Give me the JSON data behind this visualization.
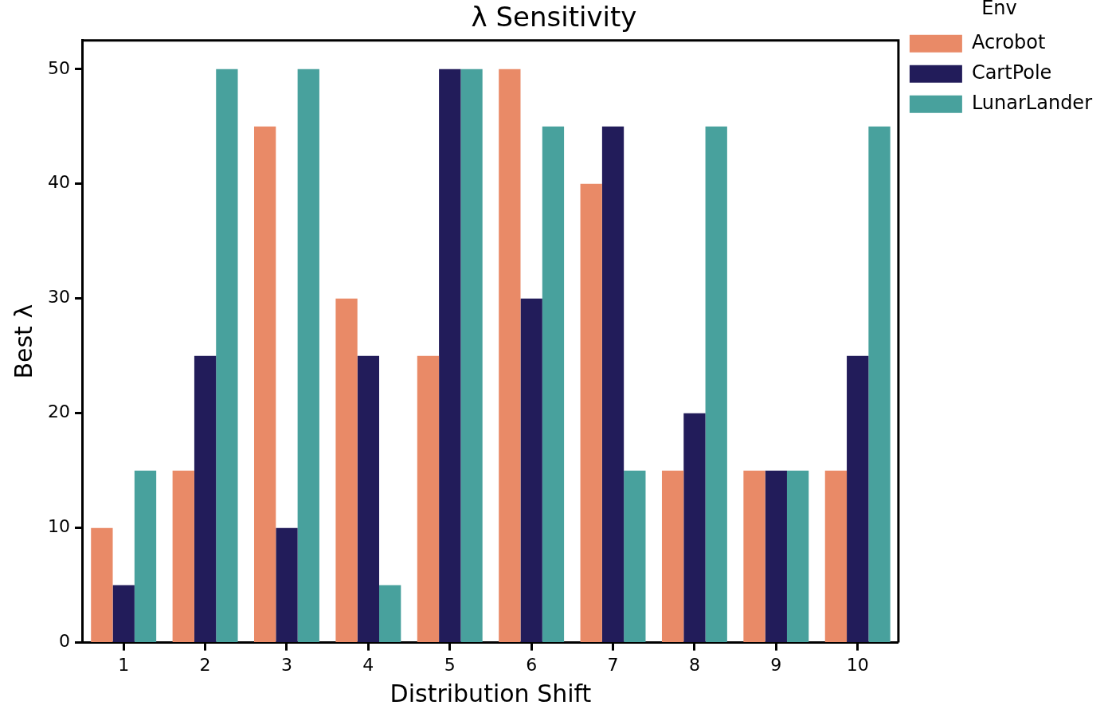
{
  "chart_data": {
    "type": "bar",
    "title": "λ Sensitivity",
    "xlabel": "Distribution Shift",
    "ylabel": "Best λ",
    "legend_title": "Env",
    "categories": [
      "1",
      "2",
      "3",
      "4",
      "5",
      "6",
      "7",
      "8",
      "9",
      "10"
    ],
    "series": [
      {
        "name": "Acrobot",
        "color": "#e98a67",
        "values": [
          10,
          15,
          45,
          30,
          25,
          50,
          40,
          15,
          15,
          15
        ]
      },
      {
        "name": "CartPole",
        "color": "#221c5a",
        "values": [
          5,
          25,
          10,
          25,
          50,
          30,
          45,
          20,
          15,
          25
        ]
      },
      {
        "name": "LunarLander",
        "color": "#48a19d",
        "values": [
          15,
          50,
          50,
          5,
          50,
          45,
          15,
          45,
          15,
          45
        ]
      }
    ],
    "ylim": [
      0,
      52.5
    ],
    "yticks": [
      0,
      10,
      20,
      30,
      40,
      50
    ],
    "grid": false,
    "legend": "top right"
  }
}
